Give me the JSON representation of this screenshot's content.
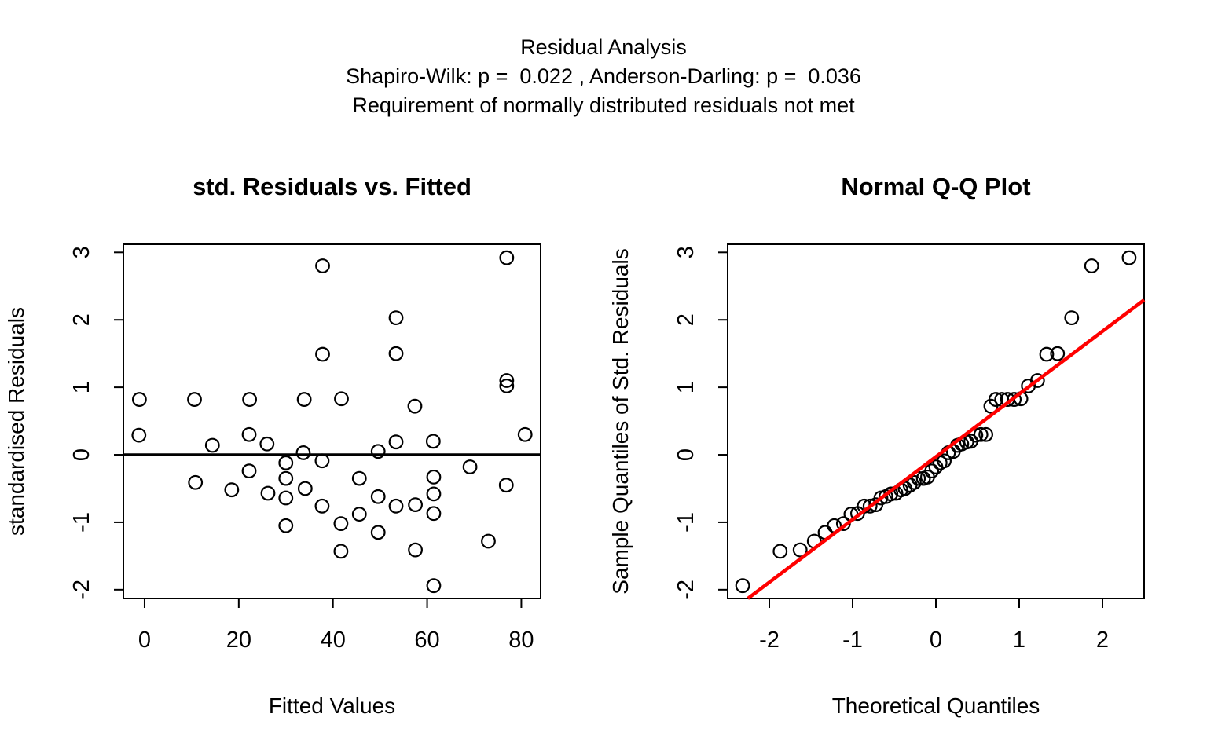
{
  "header": {
    "title": "Residual Analysis",
    "subtitle": "Shapiro-Wilk: p =  0.022 , Anderson-Darling: p =  0.036",
    "note": "Requirement of normally distributed residuals not met"
  },
  "colors": {
    "foreground": "#000000",
    "background": "#ffffff",
    "qq_line": "#ff0000"
  },
  "chart_data": [
    {
      "type": "scatter",
      "title": "std. Residuals vs. Fitted",
      "xlabel": "Fitted Values",
      "ylabel": "standardised Residuals",
      "xlim": [
        -4.5,
        84.1
      ],
      "ylim": [
        -2.13,
        3.12
      ],
      "xticks": [
        0,
        20,
        40,
        60,
        80
      ],
      "yticks": [
        -2,
        -1,
        0,
        1,
        2,
        3
      ],
      "grid": false,
      "marker": "open-circle",
      "zero_line_y": 0,
      "points": [
        [
          37.8,
          2.8
        ],
        [
          76.9,
          2.92
        ],
        [
          53.4,
          2.03
        ],
        [
          53.4,
          1.5
        ],
        [
          37.8,
          1.49
        ],
        [
          76.9,
          1.1
        ],
        [
          76.9,
          1.02
        ],
        [
          -1.1,
          0.82
        ],
        [
          10.6,
          0.82
        ],
        [
          22.3,
          0.82
        ],
        [
          33.9,
          0.82
        ],
        [
          41.8,
          0.83
        ],
        [
          57.4,
          0.72
        ],
        [
          -1.2,
          0.29
        ],
        [
          14.4,
          0.14
        ],
        [
          22.2,
          0.3
        ],
        [
          26.0,
          0.16
        ],
        [
          33.7,
          0.03
        ],
        [
          49.6,
          0.05
        ],
        [
          53.4,
          0.19
        ],
        [
          61.3,
          0.2
        ],
        [
          80.8,
          0.3
        ],
        [
          30.0,
          -0.12
        ],
        [
          37.7,
          -0.09
        ],
        [
          22.2,
          -0.24
        ],
        [
          10.8,
          -0.41
        ],
        [
          18.5,
          -0.52
        ],
        [
          30.0,
          -0.35
        ],
        [
          26.2,
          -0.57
        ],
        [
          30.0,
          -0.64
        ],
        [
          34.1,
          -0.5
        ],
        [
          37.7,
          -0.76
        ],
        [
          30.0,
          -1.05
        ],
        [
          69.1,
          -0.18
        ],
        [
          45.6,
          -0.35
        ],
        [
          61.4,
          -0.33
        ],
        [
          76.8,
          -0.45
        ],
        [
          49.6,
          -0.62
        ],
        [
          53.4,
          -0.76
        ],
        [
          57.5,
          -0.74
        ],
        [
          61.4,
          -0.58
        ],
        [
          61.4,
          -0.87
        ],
        [
          45.6,
          -0.88
        ],
        [
          41.7,
          -1.02
        ],
        [
          49.6,
          -1.15
        ],
        [
          73.0,
          -1.28
        ],
        [
          41.7,
          -1.43
        ],
        [
          57.5,
          -1.41
        ],
        [
          61.4,
          -1.94
        ]
      ]
    },
    {
      "type": "scatter",
      "title": "Normal Q-Q Plot",
      "xlabel": "Theoretical Quantiles",
      "ylabel": "Sample Quantiles of Std. Residuals",
      "xlim": [
        -2.5,
        2.5
      ],
      "ylim": [
        -2.13,
        3.12
      ],
      "xticks": [
        -2,
        -1,
        0,
        1,
        2
      ],
      "yticks": [
        -2,
        -1,
        0,
        1,
        2,
        3
      ],
      "grid": false,
      "marker": "open-circle",
      "refline": {
        "slope": 0.93,
        "intercept": -0.03,
        "color": "#ff0000"
      },
      "points": [
        [
          -2.32,
          -1.94
        ],
        [
          -1.87,
          -1.43
        ],
        [
          -1.63,
          -1.41
        ],
        [
          -1.46,
          -1.28
        ],
        [
          -1.33,
          -1.15
        ],
        [
          -1.22,
          -1.05
        ],
        [
          -1.11,
          -1.02
        ],
        [
          -1.02,
          -0.88
        ],
        [
          -0.94,
          -0.87
        ],
        [
          -0.86,
          -0.76
        ],
        [
          -0.79,
          -0.76
        ],
        [
          -0.72,
          -0.74
        ],
        [
          -0.66,
          -0.64
        ],
        [
          -0.6,
          -0.62
        ],
        [
          -0.54,
          -0.58
        ],
        [
          -0.48,
          -0.57
        ],
        [
          -0.42,
          -0.52
        ],
        [
          -0.37,
          -0.5
        ],
        [
          -0.31,
          -0.45
        ],
        [
          -0.26,
          -0.41
        ],
        [
          -0.21,
          -0.35
        ],
        [
          -0.15,
          -0.35
        ],
        [
          -0.1,
          -0.33
        ],
        [
          -0.05,
          -0.24
        ],
        [
          0.0,
          -0.18
        ],
        [
          0.05,
          -0.12
        ],
        [
          0.1,
          -0.09
        ],
        [
          0.15,
          0.03
        ],
        [
          0.21,
          0.05
        ],
        [
          0.26,
          0.14
        ],
        [
          0.31,
          0.16
        ],
        [
          0.37,
          0.19
        ],
        [
          0.42,
          0.2
        ],
        [
          0.48,
          0.29
        ],
        [
          0.54,
          0.3
        ],
        [
          0.6,
          0.3
        ],
        [
          0.66,
          0.72
        ],
        [
          0.72,
          0.82
        ],
        [
          0.79,
          0.82
        ],
        [
          0.86,
          0.82
        ],
        [
          0.94,
          0.82
        ],
        [
          1.02,
          0.83
        ],
        [
          1.11,
          1.02
        ],
        [
          1.22,
          1.1
        ],
        [
          1.33,
          1.49
        ],
        [
          1.46,
          1.5
        ],
        [
          1.63,
          2.03
        ],
        [
          1.87,
          2.8
        ],
        [
          2.32,
          2.92
        ]
      ]
    }
  ]
}
